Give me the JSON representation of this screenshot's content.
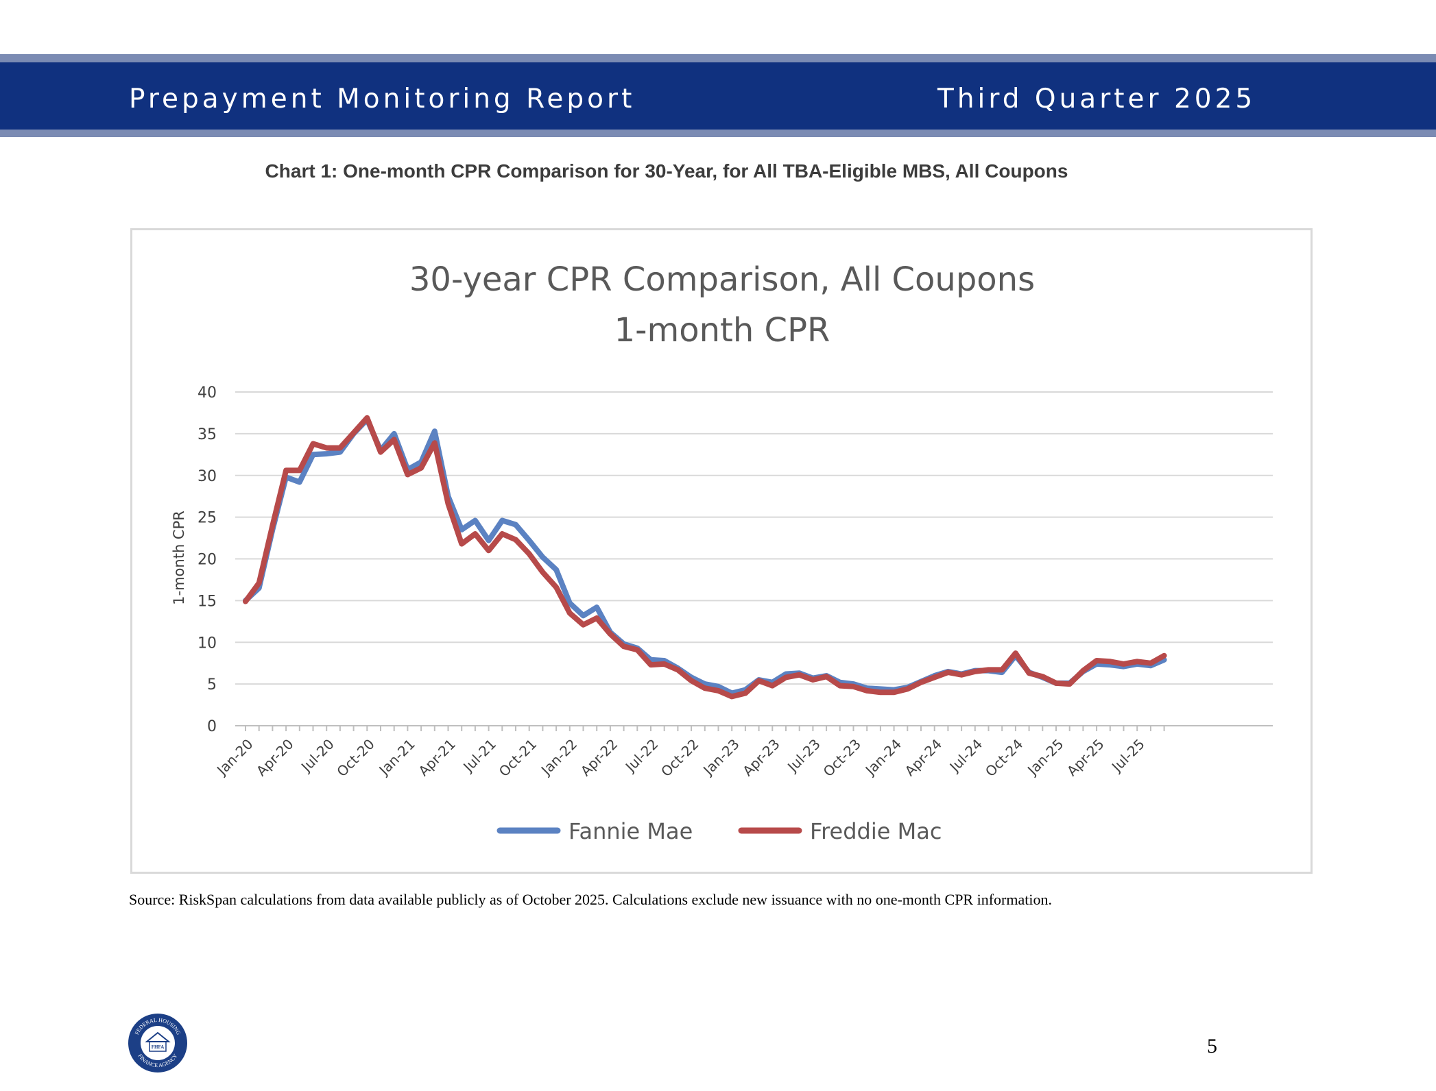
{
  "header": {
    "title": "Prepayment Monitoring Report",
    "quarter": "Third Quarter 2025"
  },
  "caption": "Chart 1: One-month CPR Comparison for 30-Year, for All TBA-Eligible MBS, All Coupons",
  "source": "Source: RiskSpan calculations from data available publicly as of October 2025.  Calculations exclude new issuance with no one-month CPR information.",
  "page_number": "5",
  "logo": {
    "top_text": "FEDERAL HOUSING",
    "bottom_text": "FINANCE AGENCY",
    "center_text": "FHFA"
  },
  "colors": {
    "fannie": "#5b82c2",
    "freddie": "#b74a4a",
    "header_blue": "#10317f",
    "header_band": "#7b8bb3"
  },
  "chart_data": {
    "type": "line",
    "title_line1": "30-year CPR Comparison, All Coupons",
    "title_line2": "1-month CPR",
    "ylabel": "1-month CPR",
    "xlabel": "",
    "ylim": [
      0,
      40
    ],
    "yticks": [
      "0",
      "5",
      "10",
      "15",
      "20",
      "25",
      "30",
      "35",
      "40"
    ],
    "x_tick_labels": [
      "Jan-20",
      "Apr-20",
      "Jul-20",
      "Oct-20",
      "Jan-21",
      "Apr-21",
      "Jul-21",
      "Oct-21",
      "Jan-22",
      "Apr-22",
      "Jul-22",
      "Oct-22",
      "Jan-23",
      "Apr-23",
      "Jul-23",
      "Oct-23",
      "Jan-24",
      "Apr-24",
      "Jul-24",
      "Oct-24",
      "Jan-25",
      "Apr-25",
      "Jul-25"
    ],
    "legend_position": "bottom",
    "series": [
      {
        "name": "Fannie Mae",
        "values": [
          15.0,
          16.5,
          23.5,
          29.8,
          29.2,
          32.5,
          32.6,
          32.8,
          35.0,
          36.7,
          33.0,
          35.0,
          30.7,
          31.6,
          35.3,
          27.5,
          23.5,
          24.6,
          22.2,
          24.6,
          24.1,
          22.2,
          20.2,
          18.7,
          14.7,
          13.2,
          14.2,
          11.2,
          9.8,
          9.3,
          7.9,
          7.8,
          6.9,
          5.8,
          5.0,
          4.7,
          3.9,
          4.3,
          5.5,
          5.2,
          6.2,
          6.3,
          5.7,
          6.0,
          5.2,
          5.0,
          4.5,
          4.4,
          4.3,
          4.6,
          5.3,
          6.0,
          6.5,
          6.2,
          6.6,
          6.6,
          6.4,
          8.4,
          6.4,
          5.8,
          5.1,
          5.1,
          6.5,
          7.4,
          7.3,
          7.1,
          7.4,
          7.2,
          7.9
        ],
        "color": "#5b82c2"
      },
      {
        "name": "Freddie Mac",
        "values": [
          14.9,
          17.1,
          24.0,
          30.6,
          30.6,
          33.8,
          33.3,
          33.3,
          35.1,
          36.9,
          32.8,
          34.3,
          30.1,
          30.9,
          33.9,
          26.6,
          21.8,
          23.0,
          21.0,
          23.0,
          22.3,
          20.6,
          18.4,
          16.6,
          13.5,
          12.1,
          12.9,
          11.0,
          9.5,
          9.1,
          7.3,
          7.4,
          6.7,
          5.4,
          4.5,
          4.2,
          3.5,
          3.9,
          5.4,
          4.8,
          5.8,
          6.1,
          5.5,
          5.9,
          4.8,
          4.7,
          4.2,
          4.0,
          4.0,
          4.4,
          5.2,
          5.8,
          6.4,
          6.1,
          6.5,
          6.7,
          6.7,
          8.7,
          6.3,
          5.9,
          5.1,
          5.0,
          6.6,
          7.8,
          7.7,
          7.4,
          7.7,
          7.5,
          8.4
        ],
        "color": "#b74a4a"
      }
    ]
  }
}
